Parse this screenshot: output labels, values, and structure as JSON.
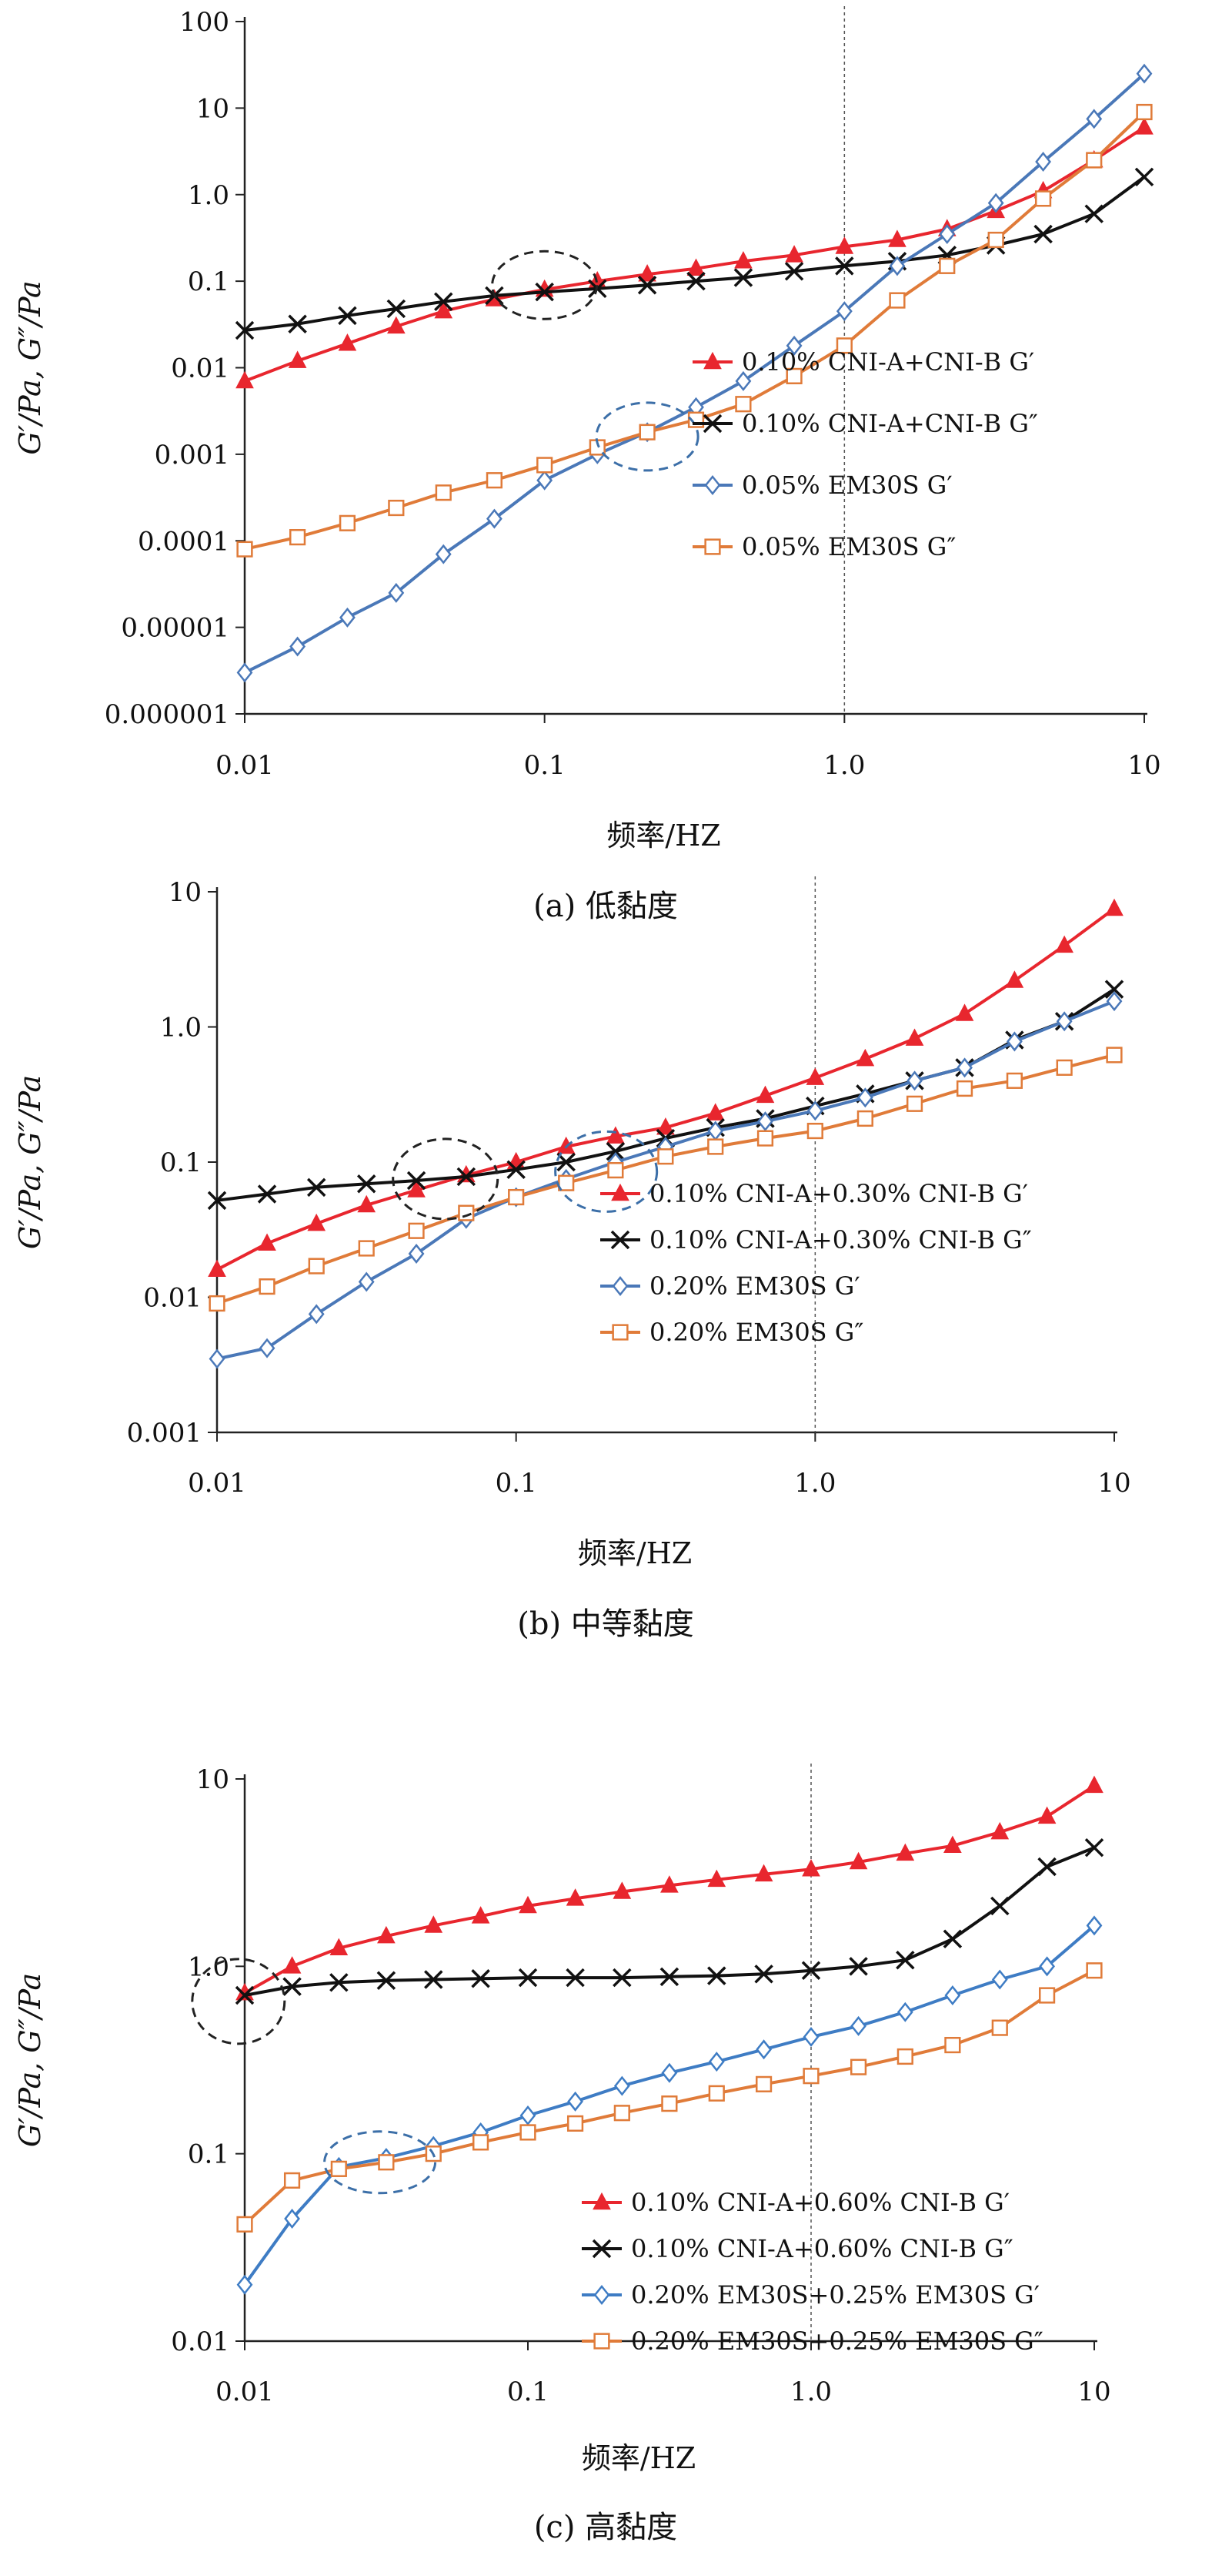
{
  "chart_data": [
    {
      "type": "line",
      "caption": "(a) 低黏度",
      "xlabel": "频率/HZ",
      "ylabel": "G′/Pa, G″/Pa",
      "xscale": "log",
      "yscale": "log",
      "xlim": [
        0.01,
        10
      ],
      "ylim": [
        1e-06,
        100
      ],
      "xticks": [
        {
          "v": 0.01,
          "label": "0.01"
        },
        {
          "v": 0.1,
          "label": "0.1"
        },
        {
          "v": 1,
          "label": "1.0"
        },
        {
          "v": 10,
          "label": "10"
        }
      ],
      "yticks": [
        {
          "v": 1e-06,
          "label": "0.000001"
        },
        {
          "v": 1e-05,
          "label": "0.00001"
        },
        {
          "v": 0.0001,
          "label": "0.0001"
        },
        {
          "v": 0.001,
          "label": "0.001"
        },
        {
          "v": 0.01,
          "label": "0.01"
        },
        {
          "v": 0.1,
          "label": "0.1"
        },
        {
          "v": 1,
          "label": "1.0"
        },
        {
          "v": 10,
          "label": "10"
        },
        {
          "v": 100,
          "label": "100"
        }
      ],
      "reference_line_x": 1.0,
      "legend_position": "bottom-right",
      "series": [
        {
          "name": "0.10% CNI-A+CNI-B G′",
          "color": "#e8262e",
          "marker": "triangle",
          "x": [
            0.01,
            0.015,
            0.022,
            0.032,
            0.046,
            0.068,
            0.1,
            0.15,
            0.22,
            0.32,
            0.46,
            0.68,
            1.0,
            1.5,
            2.2,
            3.2,
            4.6,
            6.8,
            10
          ],
          "y": [
            0.007,
            0.012,
            0.019,
            0.03,
            0.045,
            0.062,
            0.08,
            0.1,
            0.12,
            0.14,
            0.17,
            0.2,
            0.25,
            0.3,
            0.4,
            0.65,
            1.1,
            2.5,
            6.0
          ]
        },
        {
          "name": "0.10% CNI-A+CNI-B G″",
          "color": "#111111",
          "marker": "x",
          "x": [
            0.01,
            0.015,
            0.022,
            0.032,
            0.046,
            0.068,
            0.1,
            0.15,
            0.22,
            0.32,
            0.46,
            0.68,
            1.0,
            1.5,
            2.2,
            3.2,
            4.6,
            6.8,
            10
          ],
          "y": [
            0.027,
            0.032,
            0.04,
            0.048,
            0.058,
            0.068,
            0.075,
            0.082,
            0.09,
            0.1,
            0.11,
            0.13,
            0.15,
            0.17,
            0.2,
            0.26,
            0.35,
            0.6,
            1.6
          ]
        },
        {
          "name": "0.05% EM30S G′",
          "color": "#4a78b8",
          "marker": "diamond",
          "x": [
            0.01,
            0.015,
            0.022,
            0.032,
            0.046,
            0.068,
            0.1,
            0.15,
            0.22,
            0.32,
            0.46,
            0.68,
            1.0,
            1.5,
            2.2,
            3.2,
            4.6,
            6.8,
            10
          ],
          "y": [
            3e-06,
            6e-06,
            1.3e-05,
            2.5e-05,
            7e-05,
            0.00018,
            0.0005,
            0.001,
            0.0018,
            0.0035,
            0.007,
            0.018,
            0.045,
            0.15,
            0.35,
            0.8,
            2.4,
            7.5,
            25
          ]
        },
        {
          "name": "0.05% EM30S G″",
          "color": "#e07b39",
          "marker": "square",
          "x": [
            0.01,
            0.015,
            0.022,
            0.032,
            0.046,
            0.068,
            0.1,
            0.15,
            0.22,
            0.32,
            0.46,
            0.68,
            1.0,
            1.5,
            2.2,
            3.2,
            4.6,
            6.8,
            10
          ],
          "y": [
            8e-05,
            0.00011,
            0.00016,
            0.00024,
            0.00036,
            0.0005,
            0.00075,
            0.0012,
            0.0018,
            0.0025,
            0.0038,
            0.008,
            0.018,
            0.06,
            0.15,
            0.3,
            0.9,
            2.5,
            9.0
          ]
        }
      ]
    },
    {
      "type": "line",
      "caption": "(b) 中等黏度",
      "xlabel": "频率/HZ",
      "ylabel": "G′/Pa, G″/Pa",
      "xscale": "log",
      "yscale": "log",
      "xlim": [
        0.01,
        10
      ],
      "ylim": [
        0.001,
        10
      ],
      "xticks": [
        {
          "v": 0.01,
          "label": "0.01"
        },
        {
          "v": 0.1,
          "label": "0.1"
        },
        {
          "v": 1,
          "label": "1.0"
        },
        {
          "v": 10,
          "label": "10"
        }
      ],
      "yticks": [
        {
          "v": 0.001,
          "label": "0.001"
        },
        {
          "v": 0.01,
          "label": "0.01"
        },
        {
          "v": 0.1,
          "label": "0.1"
        },
        {
          "v": 1,
          "label": "1.0"
        },
        {
          "v": 10,
          "label": "10"
        }
      ],
      "reference_line_x": 1.0,
      "legend_position": "bottom-right",
      "series": [
        {
          "name": "0.10% CNI-A+0.30% CNI-B G′",
          "color": "#e8262e",
          "marker": "triangle",
          "x": [
            0.01,
            0.0147,
            0.0215,
            0.0316,
            0.0464,
            0.0681,
            0.1,
            0.147,
            0.215,
            0.316,
            0.464,
            0.681,
            1.0,
            1.47,
            2.15,
            3.16,
            4.64,
            6.81,
            10
          ],
          "y": [
            0.016,
            0.025,
            0.035,
            0.048,
            0.062,
            0.08,
            0.1,
            0.13,
            0.155,
            0.18,
            0.23,
            0.31,
            0.42,
            0.58,
            0.82,
            1.25,
            2.2,
            4.0,
            7.5
          ]
        },
        {
          "name": "0.10% CNI-A+0.30% CNI-B G″",
          "color": "#111111",
          "marker": "x",
          "x": [
            0.01,
            0.0147,
            0.0215,
            0.0316,
            0.0464,
            0.0681,
            0.1,
            0.147,
            0.215,
            0.316,
            0.464,
            0.681,
            1.0,
            1.47,
            2.15,
            3.16,
            4.64,
            6.81,
            10
          ],
          "y": [
            0.052,
            0.058,
            0.065,
            0.069,
            0.073,
            0.078,
            0.088,
            0.1,
            0.12,
            0.15,
            0.18,
            0.21,
            0.26,
            0.32,
            0.4,
            0.5,
            0.8,
            1.1,
            1.9
          ]
        },
        {
          "name": "0.20% EM30S G′",
          "color": "#4a78b8",
          "marker": "diamond",
          "x": [
            0.01,
            0.0147,
            0.0215,
            0.0316,
            0.0464,
            0.0681,
            0.1,
            0.147,
            0.215,
            0.316,
            0.464,
            0.681,
            1.0,
            1.47,
            2.15,
            3.16,
            4.64,
            6.81,
            10
          ],
          "y": [
            0.0035,
            0.0042,
            0.0075,
            0.013,
            0.021,
            0.038,
            0.055,
            0.075,
            0.1,
            0.13,
            0.17,
            0.2,
            0.24,
            0.3,
            0.4,
            0.5,
            0.78,
            1.1,
            1.55
          ]
        },
        {
          "name": "0.20% EM30S G″",
          "color": "#e07b39",
          "marker": "square",
          "x": [
            0.01,
            0.0147,
            0.0215,
            0.0316,
            0.0464,
            0.0681,
            0.1,
            0.147,
            0.215,
            0.316,
            0.464,
            0.681,
            1.0,
            1.47,
            2.15,
            3.16,
            4.64,
            6.81,
            10
          ],
          "y": [
            0.009,
            0.012,
            0.017,
            0.023,
            0.031,
            0.042,
            0.055,
            0.07,
            0.087,
            0.11,
            0.13,
            0.15,
            0.17,
            0.21,
            0.27,
            0.35,
            0.4,
            0.5,
            0.62
          ]
        }
      ]
    },
    {
      "type": "line",
      "caption": "(c) 高黏度",
      "xlabel": "频率/HZ",
      "ylabel": "G′/Pa, G″/Pa",
      "xscale": "log",
      "yscale": "log",
      "xlim": [
        0.01,
        10
      ],
      "ylim": [
        0.01,
        10
      ],
      "xticks": [
        {
          "v": 0.01,
          "label": "0.01"
        },
        {
          "v": 0.1,
          "label": "0.1"
        },
        {
          "v": 1,
          "label": "1.0"
        },
        {
          "v": 10,
          "label": "10"
        }
      ],
      "yticks": [
        {
          "v": 0.01,
          "label": "0.01"
        },
        {
          "v": 0.1,
          "label": "0.1"
        },
        {
          "v": 1,
          "label": "1.0"
        },
        {
          "v": 10,
          "label": "10"
        }
      ],
      "reference_line_x": 1.0,
      "legend_position": "bottom-right",
      "series": [
        {
          "name": "0.10% CNI-A+0.60% CNI-B G′",
          "color": "#e8262e",
          "marker": "triangle",
          "x": [
            0.01,
            0.0147,
            0.0215,
            0.0316,
            0.0464,
            0.0681,
            0.1,
            0.147,
            0.215,
            0.316,
            0.464,
            0.681,
            1.0,
            1.47,
            2.15,
            3.16,
            4.64,
            6.81,
            10
          ],
          "y": [
            0.72,
            1.0,
            1.25,
            1.45,
            1.65,
            1.85,
            2.1,
            2.3,
            2.5,
            2.7,
            2.9,
            3.1,
            3.3,
            3.6,
            4.0,
            4.4,
            5.2,
            6.3,
            9.2
          ]
        },
        {
          "name": "0.10% CNI-A+0.60% CNI-B G″",
          "color": "#111111",
          "marker": "x",
          "x": [
            0.01,
            0.0147,
            0.0215,
            0.0316,
            0.0464,
            0.0681,
            0.1,
            0.147,
            0.215,
            0.316,
            0.464,
            0.681,
            1.0,
            1.47,
            2.15,
            3.16,
            4.64,
            6.81,
            10
          ],
          "y": [
            0.7,
            0.78,
            0.82,
            0.84,
            0.85,
            0.86,
            0.87,
            0.87,
            0.87,
            0.88,
            0.89,
            0.91,
            0.95,
            1.0,
            1.08,
            1.4,
            2.1,
            3.4,
            4.3
          ]
        },
        {
          "name": "0.20% EM30S+0.25% EM30S G′",
          "color": "#3e7cc4",
          "marker": "diamond",
          "x": [
            0.01,
            0.0147,
            0.0215,
            0.0316,
            0.0464,
            0.0681,
            0.1,
            0.147,
            0.215,
            0.316,
            0.464,
            0.681,
            1.0,
            1.47,
            2.15,
            3.16,
            4.64,
            6.81,
            10
          ],
          "y": [
            0.02,
            0.045,
            0.085,
            0.095,
            0.11,
            0.13,
            0.16,
            0.19,
            0.23,
            0.27,
            0.31,
            0.36,
            0.42,
            0.48,
            0.57,
            0.7,
            0.85,
            1.0,
            1.65
          ]
        },
        {
          "name": "0.20% EM30S+0.25% EM30S G″",
          "color": "#e07b39",
          "marker": "square",
          "x": [
            0.01,
            0.0147,
            0.0215,
            0.0316,
            0.0464,
            0.0681,
            0.1,
            0.147,
            0.215,
            0.316,
            0.464,
            0.681,
            1.0,
            1.47,
            2.15,
            3.16,
            4.64,
            6.81,
            10
          ],
          "y": [
            0.042,
            0.072,
            0.083,
            0.09,
            0.1,
            0.115,
            0.13,
            0.145,
            0.165,
            0.185,
            0.21,
            0.235,
            0.26,
            0.29,
            0.33,
            0.38,
            0.47,
            0.7,
            0.95
          ]
        }
      ]
    }
  ]
}
